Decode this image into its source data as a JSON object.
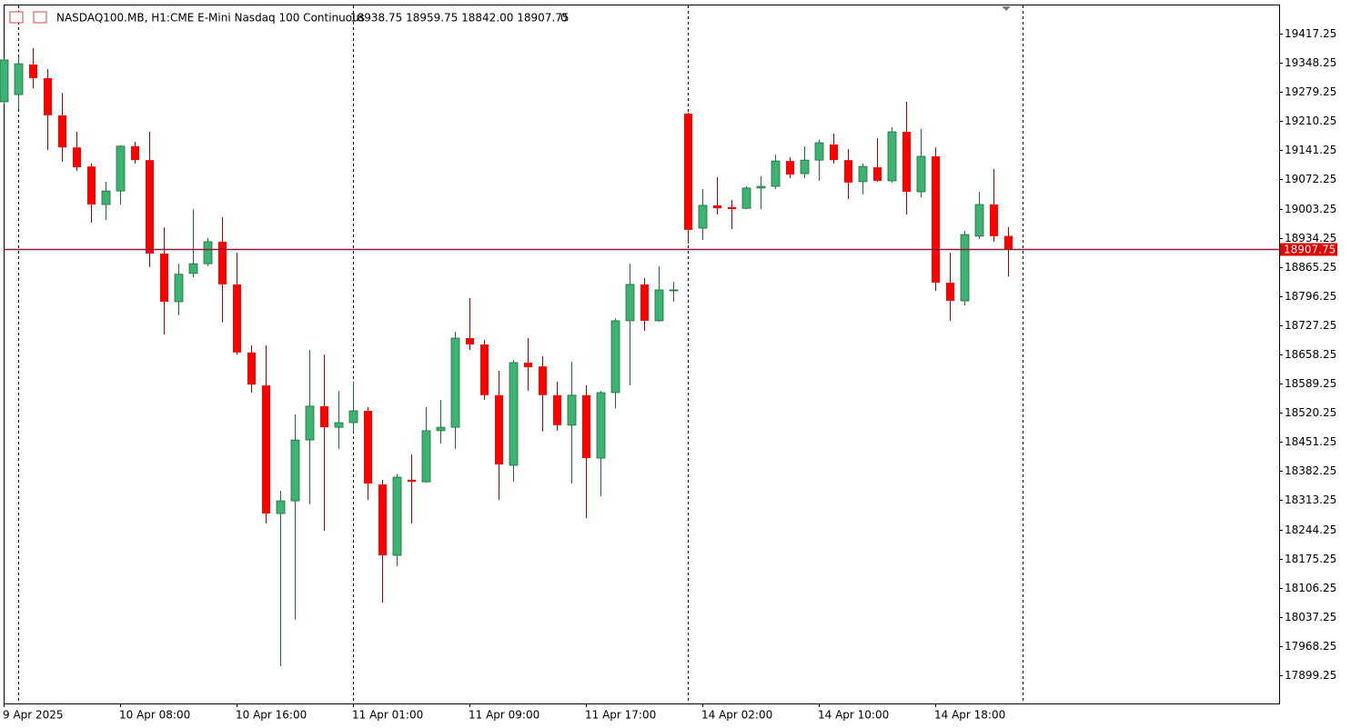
{
  "header": {
    "title": "NASDAQ100.MB, H1:",
    "description": "CME E-Mini Nasdaq 100 Continuous",
    "quote": "18938.75 18959.75 18842.00 18907.75",
    "extra": "0"
  },
  "chart_data": {
    "type": "candlestick",
    "categories": [
      "9 Apr 2025",
      null,
      null,
      null,
      null,
      null,
      null,
      null,
      "10 Apr 08:00",
      null,
      null,
      null,
      null,
      null,
      null,
      null,
      "10 Apr 16:00",
      null,
      null,
      null,
      null,
      null,
      null,
      null,
      "11 Apr 01:00",
      null,
      null,
      null,
      null,
      null,
      null,
      null,
      "11 Apr 09:00",
      null,
      null,
      null,
      null,
      null,
      null,
      null,
      "11 Apr 17:00",
      null,
      null,
      null,
      null,
      null,
      null,
      null,
      "14 Apr 02:00",
      null,
      null,
      null,
      null,
      null,
      null,
      null,
      "14 Apr 10:00",
      null,
      null,
      null,
      null,
      null,
      null,
      null,
      "14 Apr 18:00",
      null,
      null,
      null,
      null,
      null
    ],
    "open": [
      19256,
      19273,
      19344,
      19312,
      19224,
      19148,
      19103,
      19013,
      19045,
      19151,
      19118,
      18897,
      18783,
      18850,
      18873,
      18925,
      18824,
      18663,
      18585,
      18282,
      18312,
      18456,
      18536,
      18486,
      18497,
      18525,
      18351,
      18183,
      18362,
      18357,
      18478,
      18486,
      18697,
      18682,
      18562,
      18396,
      18639,
      18630,
      18562,
      18491,
      18562,
      18413,
      18568,
      18738,
      18824,
      18738,
      18809,
      19228,
      18957,
      19011,
      19007,
      19004,
      19052,
      19056,
      19116,
      19086,
      19118,
      19155,
      19118,
      19067,
      19101,
      19069,
      19185,
      19043,
      19127,
      18828,
      18785,
      18938,
      19013,
      18938.75
    ],
    "high": [
      19360,
      19363,
      19383,
      19333,
      19277,
      19185,
      19110,
      19067,
      19153,
      19161,
      19185,
      18959,
      18873,
      19002,
      18934,
      18983,
      18899,
      18680,
      18680,
      18336,
      18516,
      18669,
      18658,
      18572,
      18594,
      18534,
      18362,
      18375,
      18422,
      18534,
      18551,
      18712,
      18792,
      18693,
      18620,
      18645,
      18697,
      18654,
      18594,
      18641,
      18585,
      18572,
      18744,
      18873,
      18839,
      18867,
      18830,
      19230,
      19050,
      19078,
      19024,
      19056,
      19080,
      19131,
      19125,
      19151,
      19166,
      19181,
      19144,
      19110,
      19170,
      19196,
      19256,
      19192,
      19148,
      18899,
      18951,
      19043,
      19097,
      18959.75
    ],
    "low": [
      19250,
      19239,
      19288,
      19142,
      19114,
      19093,
      18970,
      18976,
      19013,
      19110,
      18865,
      18706,
      18751,
      18841,
      18867,
      18734,
      18658,
      18568,
      18258,
      17921,
      18031,
      18304,
      18241,
      18435,
      18476,
      18314,
      18071,
      18157,
      18258,
      18355,
      18448,
      18435,
      18669,
      18551,
      18314,
      18357,
      18572,
      18476,
      18478,
      18353,
      18271,
      18323,
      18531,
      18585,
      18714,
      18736,
      18783,
      18921,
      18929,
      18989,
      18955,
      19002,
      19002,
      19050,
      19075,
      19075,
      19069,
      19110,
      19026,
      19037,
      19067,
      19065,
      18989,
      19030,
      18809,
      18738,
      18774,
      18931,
      18925,
      18842.0
    ],
    "close": [
      19355,
      19346,
      19312,
      19224,
      19148,
      19101,
      19013,
      19045,
      19151,
      19118,
      18897,
      18783,
      18848,
      18873,
      18925,
      18824,
      18663,
      18587,
      18282,
      18312,
      18456,
      18536,
      18486,
      18497,
      18525,
      18353,
      18183,
      18368,
      18357,
      18478,
      18486,
      18697,
      18682,
      18562,
      18398,
      18639,
      18628,
      18562,
      18491,
      18562,
      18413,
      18568,
      18738,
      18824,
      18738,
      18811,
      18811,
      18953,
      19011,
      19004,
      19002,
      19052,
      19056,
      19116,
      19084,
      19118,
      19159,
      19118,
      19065,
      19103,
      19069,
      19185,
      19043,
      19127,
      18828,
      18785,
      18942,
      19013,
      18938,
      18907.75
    ],
    "up_color": "#3cb371",
    "down_color": "#ff0000",
    "last_price": {
      "value": 18907.75,
      "label": "18907.75"
    },
    "last_price_color": "#8b1a3a",
    "ylim": [
      17832.7,
      19486.05
    ],
    "yticks": [
      19417.25,
      19348.25,
      19279.25,
      19210.25,
      19141.25,
      19072.25,
      19003.25,
      18934.25,
      18865.25,
      18796.25,
      18727.25,
      18658.25,
      18589.25,
      18520.25,
      18451.25,
      18382.25,
      18313.25,
      18244.25,
      18175.25,
      18106.25,
      18037.25,
      17968.25,
      17899.25
    ]
  }
}
